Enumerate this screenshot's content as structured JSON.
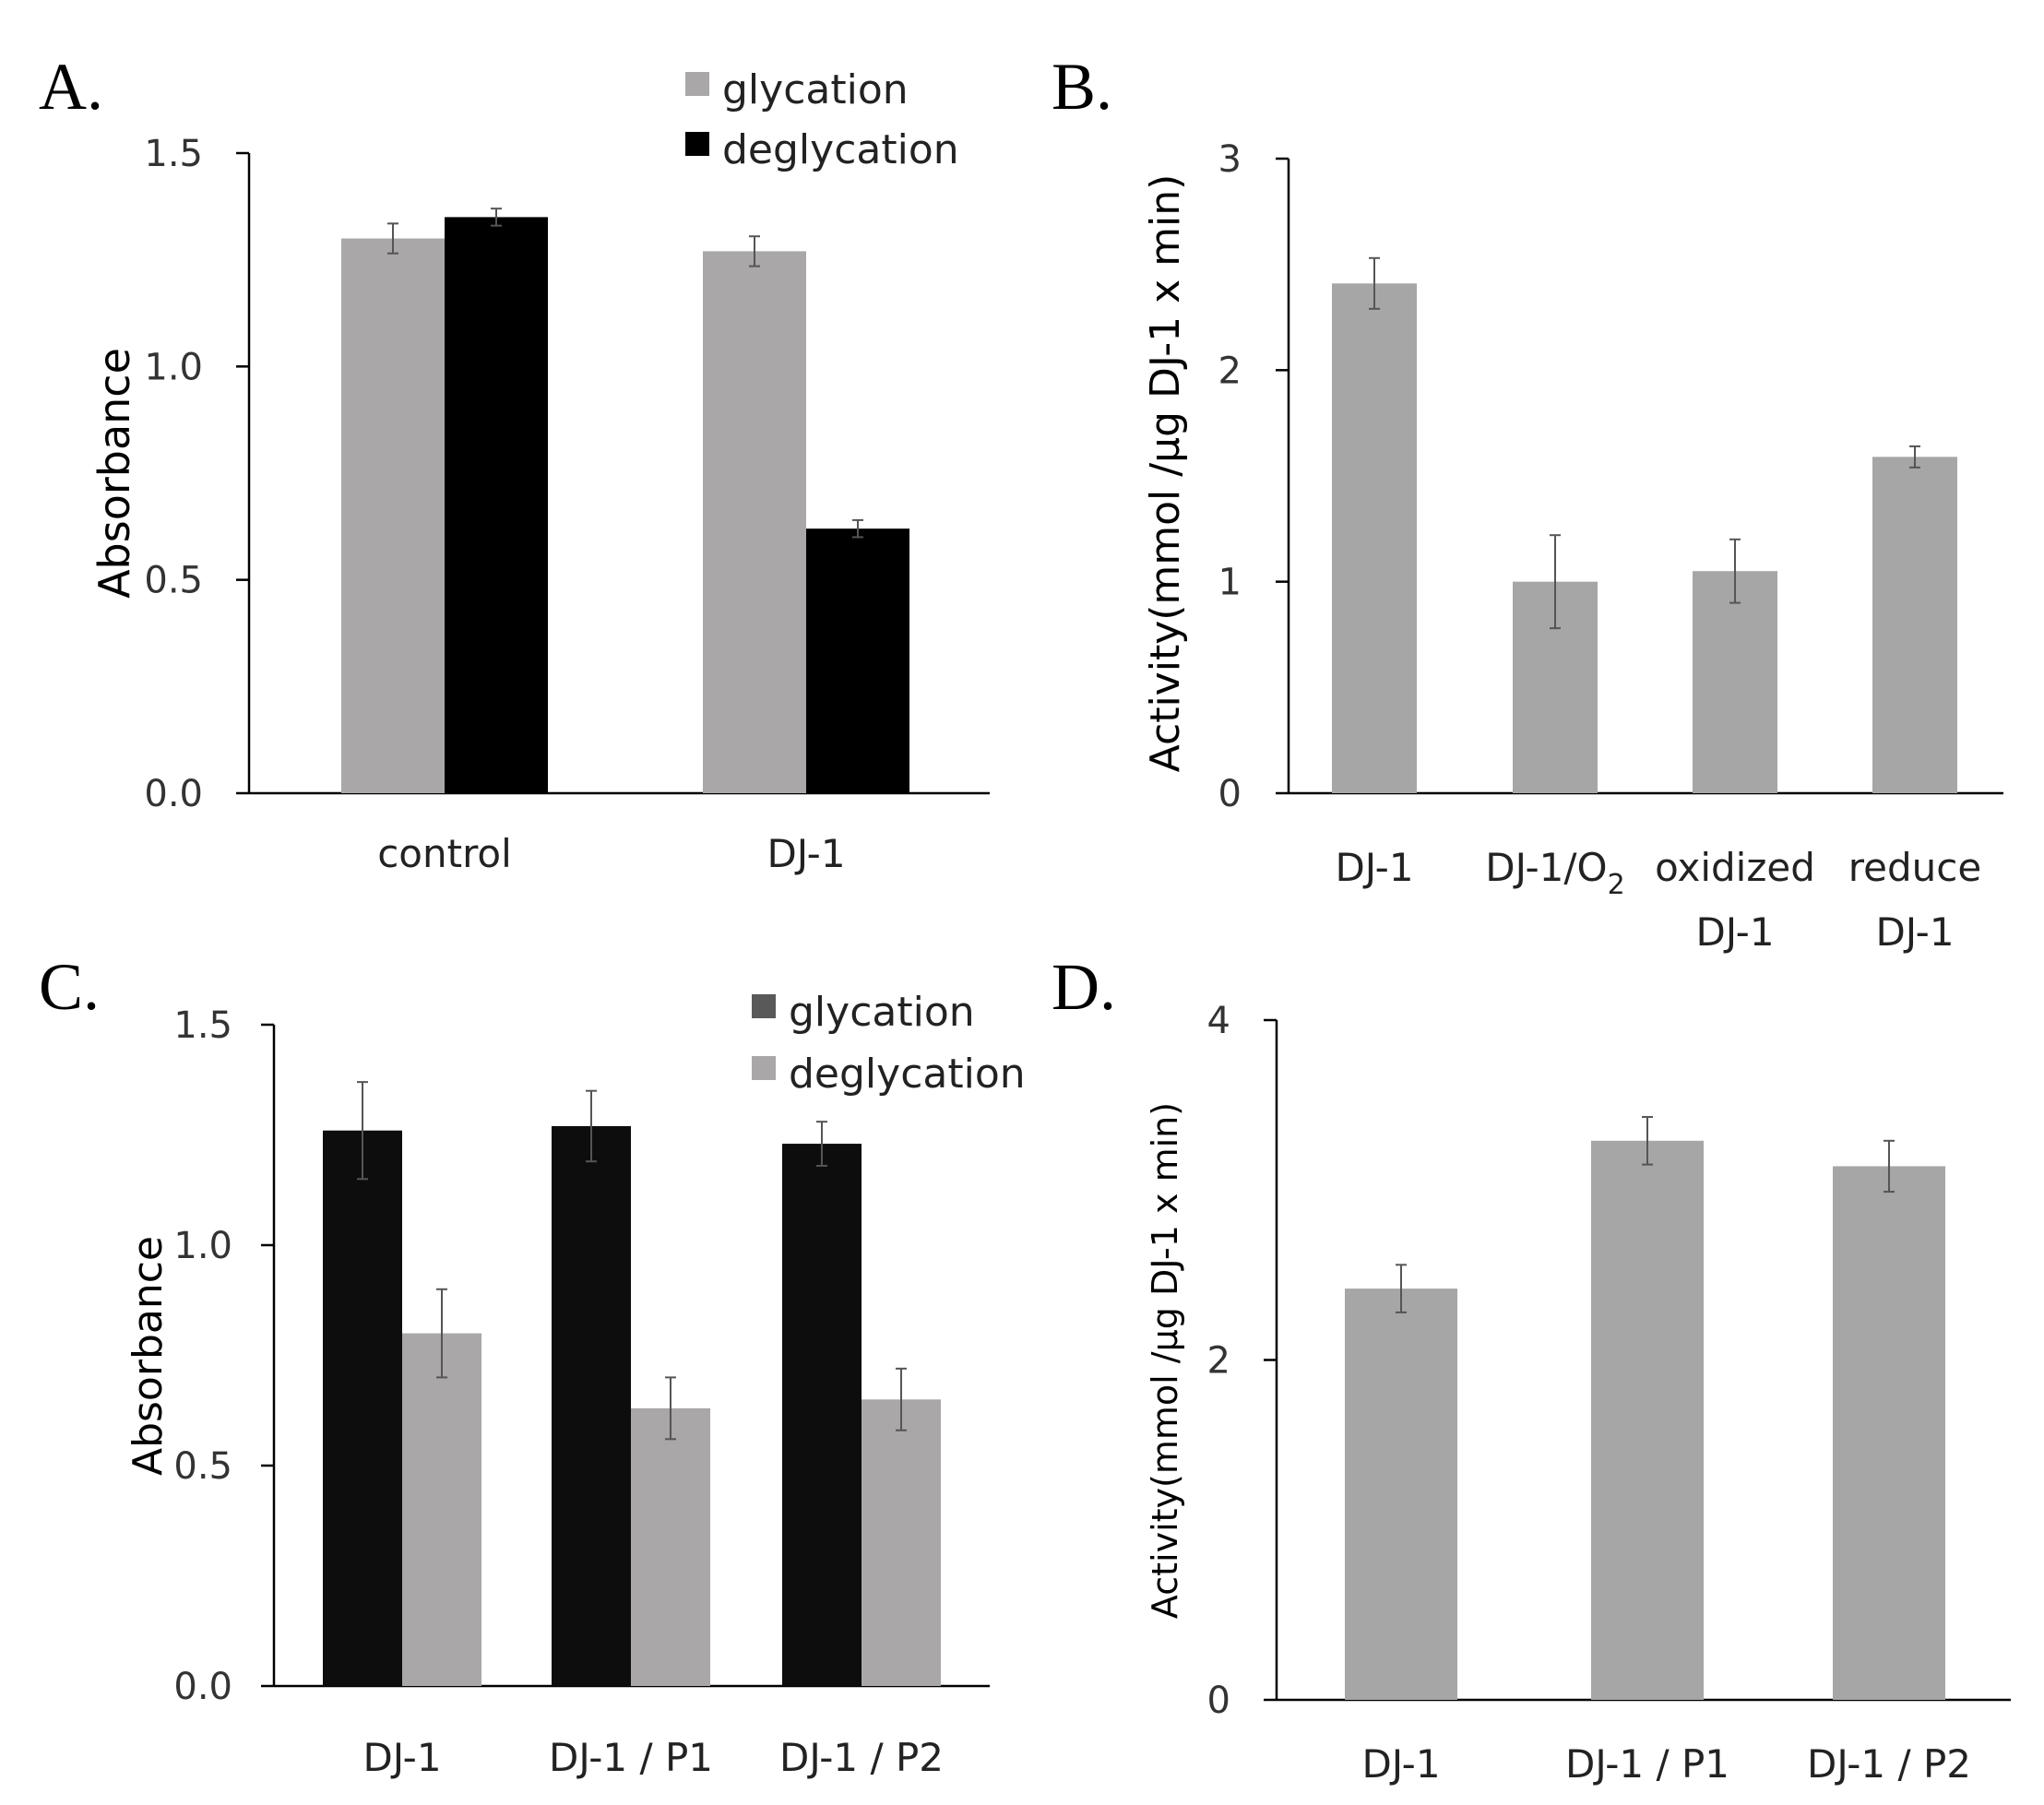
{
  "chart_data": [
    {
      "panel": "A.",
      "type": "bar",
      "ylabel": "Absorbance",
      "ylim": [
        0,
        1.5
      ],
      "yticks": [
        "0.0",
        "0.5",
        "1.0",
        "1.5"
      ],
      "categories": [
        "control",
        "DJ-1"
      ],
      "legend_position": "top-right",
      "series": [
        {
          "name": "glycation",
          "color": "#a9a7a7",
          "values": [
            1.3,
            1.27
          ],
          "errors": [
            0.035,
            0.035
          ]
        },
        {
          "name": "deglycation",
          "color": "#000000",
          "values": [
            1.35,
            0.62
          ],
          "errors": [
            0.02,
            0.02
          ]
        }
      ]
    },
    {
      "panel": "B.",
      "type": "bar",
      "ylabel": "Activity(mmol /μg  DJ-1 x min)",
      "ylim": [
        0,
        3
      ],
      "yticks": [
        "0",
        "1",
        "2",
        "3"
      ],
      "categories": [
        {
          "lines": [
            "DJ-1"
          ]
        },
        {
          "lines": [
            "DJ-1/O"
          ],
          "subscript": "2"
        },
        {
          "lines": [
            "oxidized",
            "DJ-1"
          ]
        },
        {
          "lines": [
            "reduce",
            "DJ-1"
          ]
        }
      ],
      "series": [
        {
          "name": "activity",
          "color": "#a6a6a6",
          "values": [
            2.41,
            1.0,
            1.05,
            1.59
          ],
          "errors": [
            0.12,
            0.22,
            0.15,
            0.05
          ]
        }
      ]
    },
    {
      "panel": "C.",
      "type": "bar",
      "ylabel": "Absorbance",
      "ylim": [
        0,
        1.5
      ],
      "yticks": [
        "0.0",
        "0.5",
        "1.0",
        "1.5"
      ],
      "categories": [
        "DJ-1",
        "DJ-1 / P1",
        "DJ-1 / P2"
      ],
      "legend_position": "top-right",
      "legend_colors": [
        "#595959",
        "#a9a7a7"
      ],
      "series": [
        {
          "name": "glycation",
          "color": "#0d0d0d",
          "values": [
            1.26,
            1.27,
            1.23
          ],
          "errors": [
            0.11,
            0.08,
            0.05
          ]
        },
        {
          "name": "deglycation",
          "color": "#a9a7a7",
          "values": [
            0.8,
            0.63,
            0.65
          ],
          "errors": [
            0.1,
            0.07,
            0.07
          ]
        }
      ]
    },
    {
      "panel": "D.",
      "type": "bar",
      "ylabel": "Activity(mmol /μg DJ-1 x min)",
      "ylim": [
        0,
        4
      ],
      "yticks": [
        "0",
        "2",
        "4"
      ],
      "categories": [
        "DJ-1",
        "DJ-1 / P1",
        "DJ-1 / P2"
      ],
      "series": [
        {
          "name": "activity",
          "color": "#a6a6a6",
          "values": [
            2.42,
            3.29,
            3.14
          ],
          "errors": [
            0.14,
            0.14,
            0.15
          ]
        }
      ]
    }
  ]
}
